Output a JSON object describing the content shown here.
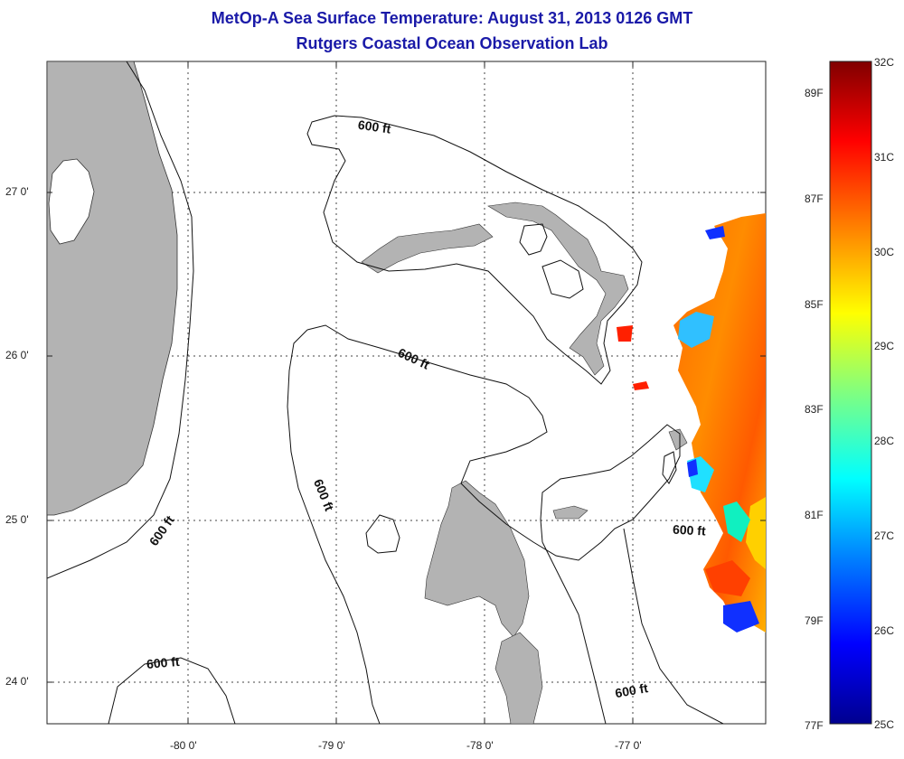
{
  "title": {
    "line1": "MetOp-A Sea Surface Temperature:  August 31, 2013 0126 GMT",
    "line2": "Rutgers Coastal Ocean Observation Lab"
  },
  "axes": {
    "latitude_labels": [
      "27 0'",
      "26 0'",
      "25 0'",
      "24 0'"
    ],
    "longitude_labels": [
      "-80 0'",
      "-79 0'",
      "-78 0'",
      "-77 0'"
    ]
  },
  "contour_labels": [
    "600 ft",
    "600 ft",
    "600 ft",
    "600 ft",
    "600 ft",
    "600 ft"
  ],
  "colorbar": {
    "celsius_labels": [
      "32C",
      "31C",
      "30C",
      "29C",
      "28C",
      "27C",
      "26C",
      "25C"
    ],
    "fahrenheit_labels": [
      "89F",
      "87F",
      "85F",
      "83F",
      "81F",
      "79F",
      "77F"
    ],
    "colors": [
      "#00008f",
      "#0000ff",
      "#0080ff",
      "#00ffff",
      "#80ff80",
      "#ffff00",
      "#ff8000",
      "#ff0000",
      "#800000"
    ]
  },
  "colors": {
    "land": "#b3b3b3",
    "title": "#1a1aa8"
  }
}
